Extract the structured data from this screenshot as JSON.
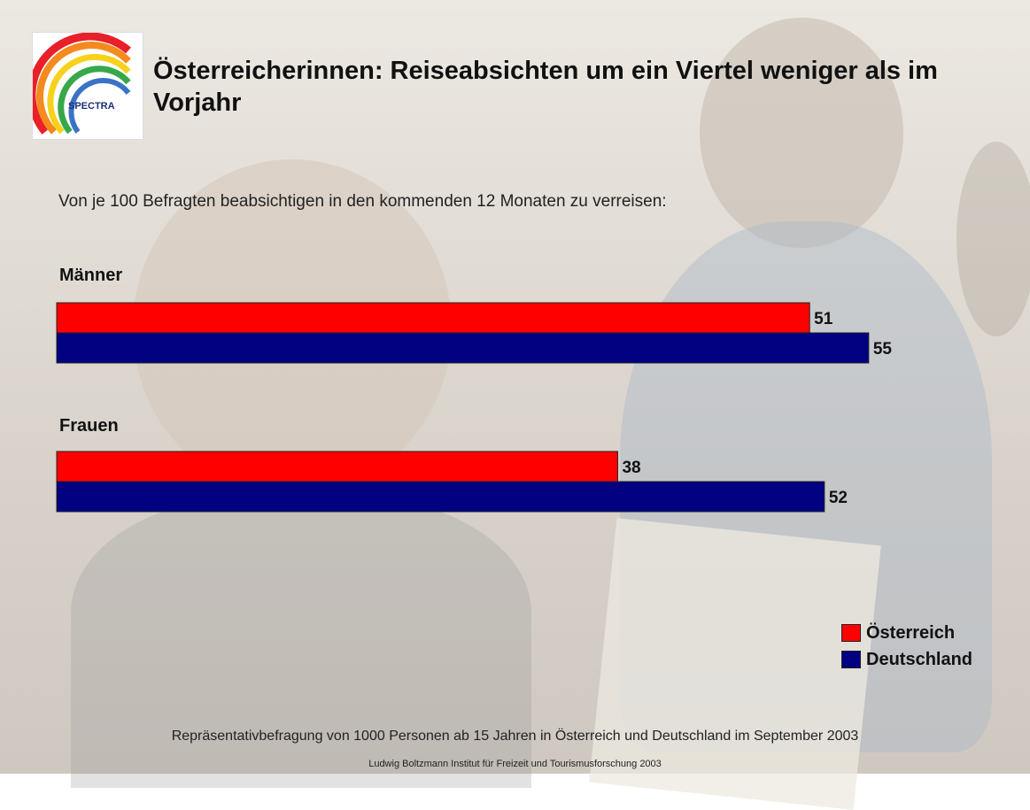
{
  "logo": {
    "text": "SPECTRA"
  },
  "header": {
    "title": "Österreicherinnen: Reiseabsichten um ein Viertel weniger als im Vorjahr"
  },
  "subtitle": "Von je 100 Befragten beabsichtigen in den kommenden 12 Monaten zu verreisen:",
  "colors": {
    "oesterreich": "#ff0000",
    "deutschland": "#000080"
  },
  "chart_data": {
    "type": "bar",
    "orientation": "horizontal",
    "categories": [
      "Männer",
      "Frauen"
    ],
    "series": [
      {
        "name": "Österreich",
        "values": [
          51,
          38
        ]
      },
      {
        "name": "Deutschland",
        "values": [
          55,
          52
        ]
      }
    ],
    "xlim": [
      0,
      60
    ],
    "grid": false,
    "legend": "bottom-right"
  },
  "footer": {
    "line1": "Repräsentativbefragung von 1000 Personen ab 15 Jahren  in Österreich und Deutschland im September  2003",
    "line2": "Ludwig Boltzmann Institut für Freizeit und Tourismusforschung 2003"
  }
}
